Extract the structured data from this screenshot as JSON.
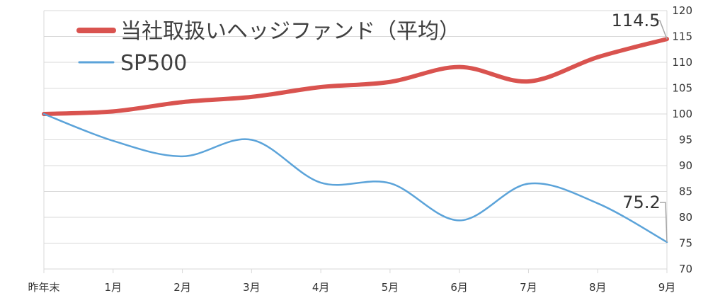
{
  "chart_data": {
    "type": "line",
    "categories": [
      "昨年末",
      "1月",
      "2月",
      "3月",
      "4月",
      "5月",
      "6月",
      "7月",
      "8月",
      "9月"
    ],
    "series": [
      {
        "name": "当社取扱いヘッジファンド（平均）",
        "values": [
          100,
          100.5,
          102.3,
          103.3,
          105.2,
          106.2,
          109.1,
          106.3,
          111.0,
          114.5
        ],
        "color": "#d9534f"
      },
      {
        "name": "SP500",
        "values": [
          100,
          94.8,
          91.8,
          95.0,
          86.7,
          86.6,
          79.4,
          86.5,
          82.7,
          75.2
        ],
        "color": "#5ba3d9"
      }
    ],
    "data_labels": [
      {
        "series": 0,
        "index": 9,
        "text": "114.5"
      },
      {
        "series": 1,
        "index": 9,
        "text": "75.2"
      }
    ],
    "ylim": [
      70,
      120
    ],
    "y_ticks": [
      70,
      75,
      80,
      85,
      90,
      95,
      100,
      105,
      110,
      115,
      120
    ],
    "y_axis_side": "right",
    "grid": true,
    "legend_position": "top-left",
    "xlabel": "",
    "ylabel": ""
  }
}
